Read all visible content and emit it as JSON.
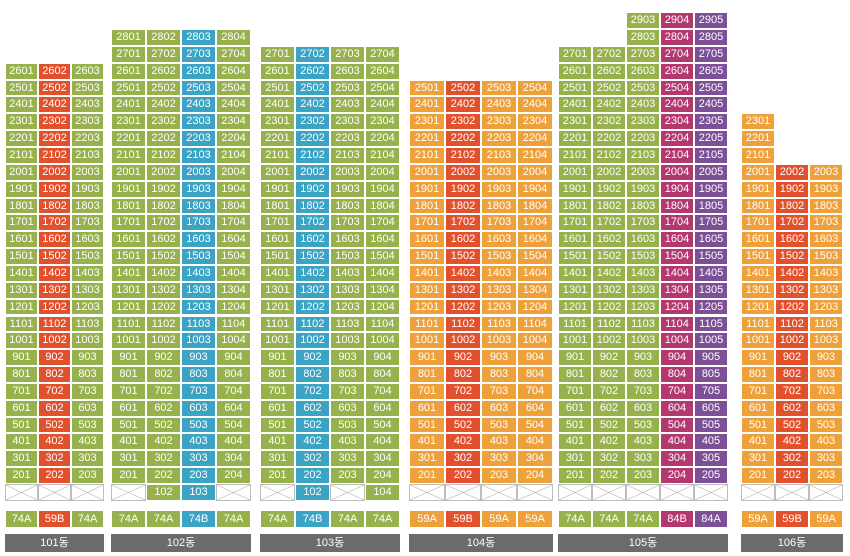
{
  "colors": {
    "G": "#97b14d",
    "R": "#e2512d",
    "B": "#3ba3c3",
    "O": "#eea13a",
    "M": "#b2386d",
    "P": "#7d4f96"
  },
  "buildings": [
    {
      "name": "101동",
      "columns": [
        {
          "line": 1,
          "type": "74A",
          "color": "G",
          "topFloor": 26,
          "hasEmpty": true,
          "firstFloorUnit": null
        },
        {
          "line": 2,
          "type": "59B",
          "color": "R",
          "topFloor": 26,
          "hasEmpty": true,
          "firstFloorUnit": null
        },
        {
          "line": 3,
          "type": "74A",
          "color": "G",
          "topFloor": 26,
          "hasEmpty": true,
          "firstFloorUnit": null
        }
      ]
    },
    {
      "name": "102동",
      "columns": [
        {
          "line": 1,
          "type": "74A",
          "color": "G",
          "topFloor": 28,
          "hasEmpty": true,
          "firstFloorUnit": null
        },
        {
          "line": 2,
          "type": "74A",
          "color": "G",
          "topFloor": 28,
          "hasEmpty": false,
          "firstFloorUnit": "102"
        },
        {
          "line": 3,
          "type": "74B",
          "color": "B",
          "topFloor": 28,
          "hasEmpty": false,
          "firstFloorUnit": "103"
        },
        {
          "line": 4,
          "type": "74A",
          "color": "G",
          "topFloor": 28,
          "hasEmpty": true,
          "firstFloorUnit": null
        }
      ]
    },
    {
      "name": "103동",
      "columns": [
        {
          "line": 1,
          "type": "74A",
          "color": "G",
          "topFloor": 27,
          "hasEmpty": true,
          "firstFloorUnit": null
        },
        {
          "line": 2,
          "type": "74B",
          "color": "B",
          "topFloor": 27,
          "hasEmpty": false,
          "firstFloorUnit": "102"
        },
        {
          "line": 3,
          "type": "74A",
          "color": "G",
          "topFloor": 27,
          "hasEmpty": true,
          "firstFloorUnit": null
        },
        {
          "line": 4,
          "type": "74A",
          "color": "G",
          "topFloor": 27,
          "hasEmpty": false,
          "firstFloorUnit": "104"
        }
      ]
    },
    {
      "name": "104동",
      "columns": [
        {
          "line": 1,
          "type": "59A",
          "color": "O",
          "topFloor": 25,
          "hasEmpty": true,
          "firstFloorUnit": null
        },
        {
          "line": 2,
          "type": "59B",
          "color": "R",
          "topFloor": 25,
          "hasEmpty": true,
          "firstFloorUnit": null
        },
        {
          "line": 3,
          "type": "59A",
          "color": "O",
          "topFloor": 25,
          "hasEmpty": true,
          "firstFloorUnit": null
        },
        {
          "line": 4,
          "type": "59A",
          "color": "O",
          "topFloor": 25,
          "hasEmpty": true,
          "firstFloorUnit": null
        }
      ]
    },
    {
      "name": "105동",
      "columns": [
        {
          "line": 1,
          "type": "74A",
          "color": "G",
          "topFloor": 27,
          "hasEmpty": true,
          "firstFloorUnit": null
        },
        {
          "line": 2,
          "type": "74A",
          "color": "G",
          "topFloor": 27,
          "hasEmpty": true,
          "firstFloorUnit": null
        },
        {
          "line": 3,
          "type": "74A",
          "color": "G",
          "topFloor": 29,
          "hasEmpty": true,
          "firstFloorUnit": null
        },
        {
          "line": 4,
          "type": "84B",
          "color": "M",
          "topFloor": 29,
          "hasEmpty": true,
          "firstFloorUnit": null
        },
        {
          "line": 5,
          "type": "84A",
          "color": "P",
          "topFloor": 29,
          "hasEmpty": true,
          "firstFloorUnit": null
        }
      ]
    },
    {
      "name": "106동",
      "columns": [
        {
          "line": 1,
          "type": "59A",
          "color": "O",
          "topFloor": 23,
          "hasEmpty": true,
          "firstFloorUnit": null
        },
        {
          "line": 2,
          "type": "59B",
          "color": "R",
          "topFloor": 20,
          "hasEmpty": true,
          "firstFloorUnit": null
        },
        {
          "line": 3,
          "type": "59A",
          "color": "O",
          "topFloor": 20,
          "hasEmpty": true,
          "firstFloorUnit": null
        }
      ]
    }
  ]
}
